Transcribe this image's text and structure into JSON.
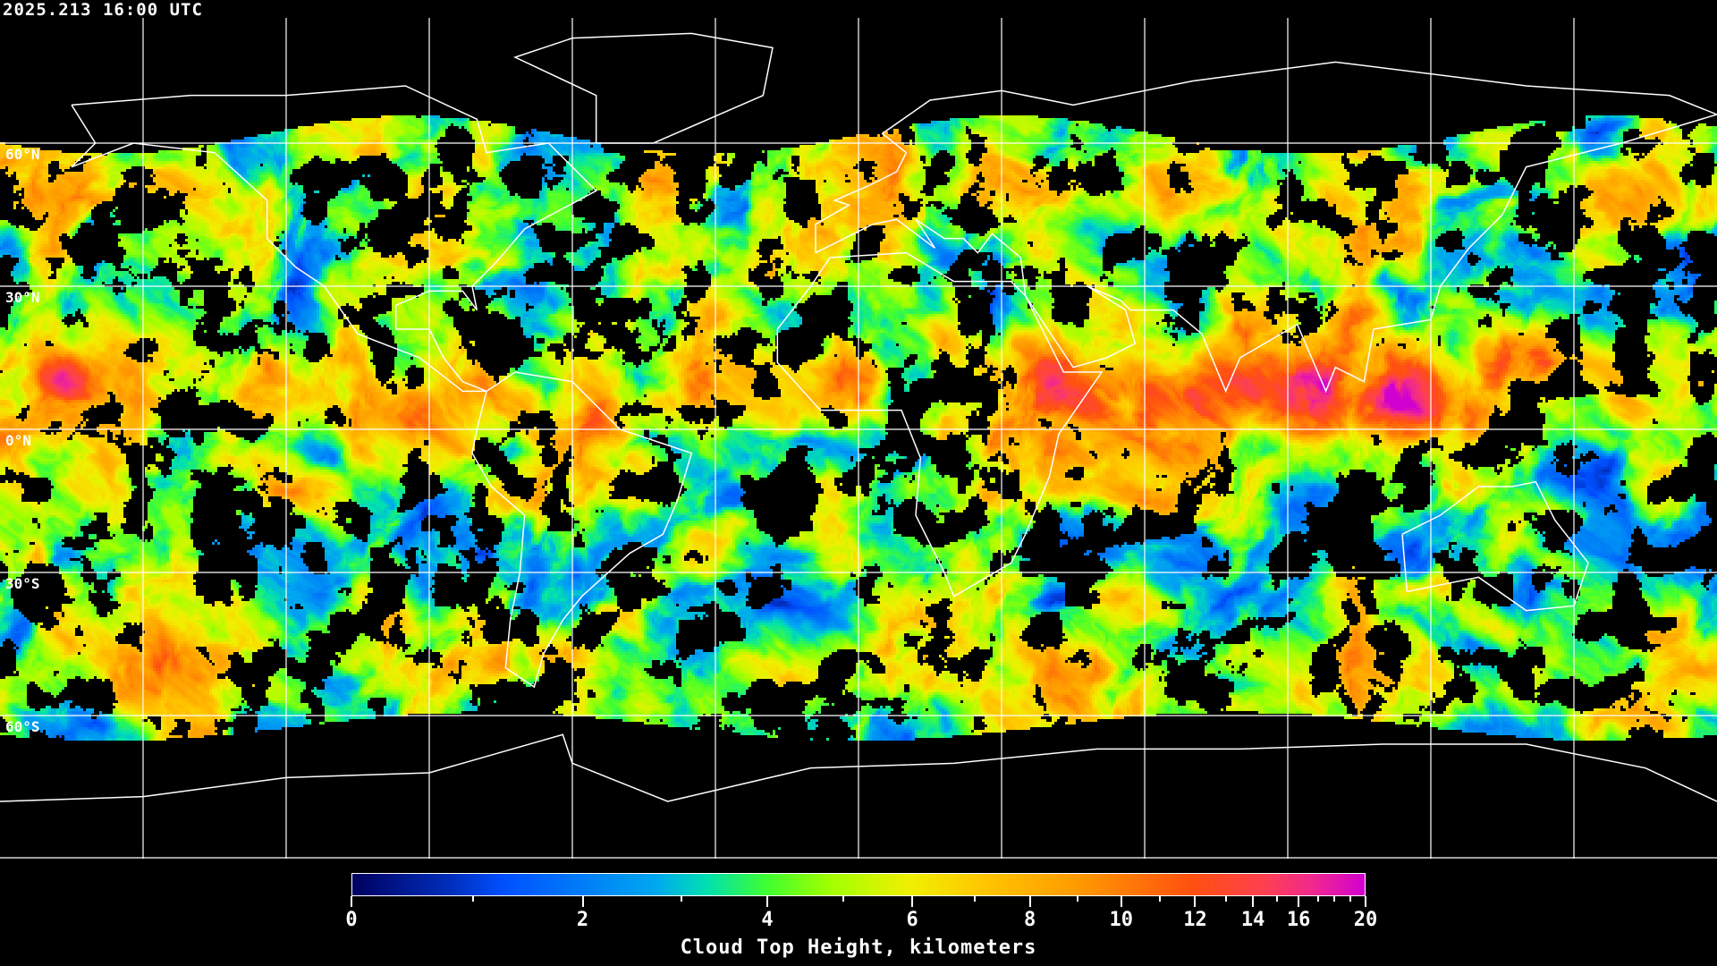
{
  "timestamp": "2025.213 16:00 UTC",
  "map": {
    "projection": "equirectangular",
    "grid_spacing_degrees": 30,
    "grid_color": "#ffffff",
    "coastline_color": "#ffffff",
    "lat_labels": [
      "60°N",
      "30°N",
      "0°N",
      "30°S",
      "60°S"
    ]
  },
  "colorbar": {
    "title": "Cloud Top Height, kilometers",
    "range": [
      0,
      20
    ],
    "major_ticks": [
      "0",
      "2",
      "4",
      "6",
      "8",
      "10",
      "12",
      "14",
      "16",
      "20"
    ],
    "minor_ticks": [
      1,
      3,
      5,
      7,
      9,
      11,
      13,
      15,
      17,
      18,
      19
    ],
    "colors": [
      "#000060",
      "#0030c0",
      "#0050ff",
      "#00a8f0",
      "#00e0b0",
      "#40ff30",
      "#a0ff00",
      "#f0f000",
      "#ffc800",
      "#ff9800",
      "#ff5010",
      "#ff4050",
      "#f02890",
      "#d000d0"
    ]
  }
}
